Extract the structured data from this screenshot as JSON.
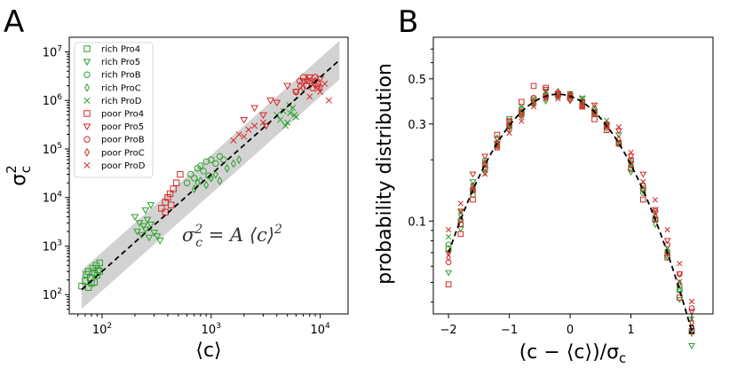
{
  "chart_data": [
    {
      "panel": "A",
      "type": "scatter",
      "xscale": "log",
      "yscale": "log",
      "xlim": [
        50,
        18000
      ],
      "ylim": [
        40,
        20000000
      ],
      "xticks": [
        100,
        1000,
        10000
      ],
      "xtick_labels": [
        {
          "base": "10",
          "exp": "2"
        },
        {
          "base": "10",
          "exp": "3"
        },
        {
          "base": "10",
          "exp": "4"
        }
      ],
      "yticks": [
        100,
        1000,
        10000,
        100000,
        1000000,
        10000000
      ],
      "ytick_labels": [
        {
          "base": "10",
          "exp": "2"
        },
        {
          "base": "10",
          "exp": "3"
        },
        {
          "base": "10",
          "exp": "4"
        },
        {
          "base": "10",
          "exp": "5"
        },
        {
          "base": "10",
          "exp": "6"
        },
        {
          "base": "10",
          "exp": "7"
        }
      ],
      "xlabel": "⟨c⟩",
      "ylabel": {
        "main": "σ",
        "sup": "2",
        "sub": "c"
      },
      "equation": {
        "lhs": "σ",
        "sup": "2",
        "sub": "c",
        "rhs": " = A ⟨c⟩",
        "rhs_sup": "2"
      },
      "fit": {
        "form": "y = A x^2",
        "A": 0.03,
        "x_range": [
          65,
          15000
        ],
        "band_factor": 2.5
      },
      "legend_position": "upper-left",
      "series": [
        {
          "name": "rich Pro4",
          "marker": "square",
          "color": "#2ca02c",
          "points": [
            [
              65,
              150
            ],
            [
              70,
              190
            ],
            [
              72,
              260
            ],
            [
              75,
              300
            ],
            [
              78,
              220
            ],
            [
              80,
              170
            ],
            [
              82,
              350
            ],
            [
              85,
              280
            ],
            [
              88,
              400
            ],
            [
              90,
              250
            ],
            [
              92,
              320
            ],
            [
              95,
              450
            ],
            [
              85,
              180
            ],
            [
              75,
              140
            ],
            [
              95,
              300
            ]
          ]
        },
        {
          "name": "rich Pro5",
          "marker": "tri_down",
          "color": "#2ca02c",
          "points": [
            [
              200,
              4000
            ],
            [
              210,
              2000
            ],
            [
              220,
              3000
            ],
            [
              230,
              1700
            ],
            [
              240,
              2600
            ],
            [
              250,
              2200
            ],
            [
              260,
              3500
            ],
            [
              270,
              1500
            ],
            [
              280,
              2800
            ],
            [
              300,
              1900
            ],
            [
              320,
              1600
            ],
            [
              340,
              1300
            ],
            [
              250,
              5500
            ],
            [
              280,
              7000
            ]
          ]
        },
        {
          "name": "rich ProB",
          "marker": "circle",
          "color": "#2ca02c",
          "points": [
            [
              600,
              20000
            ],
            [
              650,
              30000
            ],
            [
              700,
              25000
            ],
            [
              750,
              40000
            ],
            [
              800,
              45000
            ],
            [
              900,
              55000
            ],
            [
              1000,
              60000
            ],
            [
              1100,
              50000
            ],
            [
              1200,
              70000
            ],
            [
              850,
              35000
            ],
            [
              950,
              28000
            ],
            [
              1300,
              60000
            ]
          ]
        },
        {
          "name": "rich ProC",
          "marker": "diamond",
          "color": "#2ca02c",
          "points": [
            [
              700,
              15000
            ],
            [
              750,
              20000
            ],
            [
              800,
              22000
            ],
            [
              900,
              18000
            ],
            [
              1000,
              25000
            ],
            [
              1100,
              30000
            ],
            [
              1200,
              22000
            ],
            [
              1400,
              40000
            ],
            [
              1600,
              50000
            ],
            [
              1800,
              60000
            ]
          ]
        },
        {
          "name": "rich ProD",
          "marker": "x",
          "color": "#2ca02c",
          "points": [
            [
              4000,
              500000
            ],
            [
              4300,
              400000
            ],
            [
              4600,
              600000
            ],
            [
              5000,
              350000
            ],
            [
              5300,
              550000
            ],
            [
              5600,
              700000
            ],
            [
              6000,
              450000
            ],
            [
              4800,
              300000
            ],
            [
              5200,
              800000
            ],
            [
              5800,
              500000
            ]
          ]
        },
        {
          "name": "poor Pro4",
          "marker": "square",
          "color": "#d62728",
          "points": [
            [
              350,
              6000
            ],
            [
              380,
              8000
            ],
            [
              400,
              10000
            ],
            [
              420,
              12000
            ],
            [
              450,
              15000
            ],
            [
              480,
              20000
            ],
            [
              520,
              30000
            ],
            [
              380,
              5000
            ],
            [
              430,
              7000
            ]
          ]
        },
        {
          "name": "poor Pro5",
          "marker": "tri_down",
          "color": "#d62728",
          "points": [
            [
              2000,
              400000
            ],
            [
              2500,
              700000
            ],
            [
              3000,
              500000
            ],
            [
              3500,
              1000000
            ],
            [
              4000,
              900000
            ],
            [
              5000,
              2000000
            ],
            [
              6000,
              1500000
            ],
            [
              7000,
              2500000
            ],
            [
              8000,
              3000000
            ],
            [
              9000,
              2000000
            ],
            [
              10000,
              2800000
            ],
            [
              3200,
              300000
            ]
          ]
        },
        {
          "name": "poor ProB",
          "marker": "circle",
          "color": "#d62728",
          "points": [
            [
              6000,
              1500000
            ],
            [
              6500,
              2500000
            ],
            [
              7000,
              3000000
            ],
            [
              7500,
              2000000
            ],
            [
              8000,
              2500000
            ],
            [
              8500,
              1800000
            ],
            [
              9000,
              3000000
            ],
            [
              9500,
              2200000
            ]
          ]
        },
        {
          "name": "poor ProC",
          "marker": "diamond",
          "color": "#d62728",
          "points": [
            [
              6500,
              2000000
            ],
            [
              7000,
              1800000
            ],
            [
              7500,
              2600000
            ],
            [
              8200,
              2200000
            ],
            [
              9000,
              2500000
            ],
            [
              10000,
              1900000
            ]
          ]
        },
        {
          "name": "poor ProD",
          "marker": "x",
          "color": "#d62728",
          "points": [
            [
              1600,
              150000
            ],
            [
              1800,
              200000
            ],
            [
              2000,
              180000
            ],
            [
              2200,
              250000
            ],
            [
              2500,
              300000
            ],
            [
              3000,
              350000
            ],
            [
              8000,
              1200000
            ],
            [
              10000,
              1500000
            ],
            [
              12000,
              1000000
            ],
            [
              11000,
              2200000
            ],
            [
              9500,
              1700000
            ]
          ]
        }
      ]
    },
    {
      "panel": "B",
      "type": "scatter",
      "xscale": "linear",
      "yscale": "log",
      "xlim": [
        -2.25,
        2.35
      ],
      "ylim": [
        0.035,
        0.8
      ],
      "xticks": [
        -2,
        -1,
        0,
        1,
        2
      ],
      "xtick_labels": [
        "−2",
        "−1",
        "0",
        "1",
        "2"
      ],
      "yticks": [
        0.1,
        0.3,
        0.5
      ],
      "ytick_labels": [
        "0.1",
        "0.3",
        "0.5"
      ],
      "xlabel": "(c − ⟨c⟩)/σ",
      "xlabel_sub": "c",
      "ylabel": "probability distribution",
      "fit": {
        "form": "gaussian",
        "amplitude": 0.42,
        "mean": -0.2,
        "sigma": 0.95,
        "x_range": [
          -2.0,
          2.0
        ]
      },
      "x_points": [
        -2.0,
        -1.8,
        -1.6,
        -1.4,
        -1.2,
        -1.0,
        -0.8,
        -0.6,
        -0.4,
        -0.2,
        0.0,
        0.2,
        0.4,
        0.6,
        0.8,
        1.0,
        1.2,
        1.4,
        1.6,
        1.8,
        2.0
      ],
      "series": [
        {
          "name": "rich Pro4",
          "marker": "square",
          "color": "#2ca02c",
          "offsets": [
            1.05,
            0.95,
            1.0,
            1.02,
            0.98,
            1.0,
            0.97,
            1.03,
            1.0,
            0.99,
            1.02,
            1.0,
            0.98,
            1.01,
            1.0,
            0.97,
            1.02,
            1.0,
            0.98,
            1.0,
            1.0
          ]
        },
        {
          "name": "rich Pro5",
          "marker": "tri_down",
          "color": "#2ca02c",
          "offsets": [
            0.8,
            0.9,
            1.1,
            0.95,
            1.05,
            1.08,
            1.0,
            1.02,
            1.06,
            1.0,
            0.96,
            1.04,
            1.0,
            1.0,
            1.1,
            0.92,
            1.0,
            1.08,
            0.95,
            0.9,
            0.85
          ]
        },
        {
          "name": "rich ProB",
          "marker": "circle",
          "color": "#2ca02c",
          "offsets": [
            1.1,
            1.0,
            0.95,
            1.05,
            1.0,
            0.96,
            1.04,
            0.98,
            1.02,
            1.0,
            1.01,
            0.97,
            1.03,
            1.0,
            0.99,
            1.05,
            0.97,
            1.0,
            1.02,
            1.05,
            1.0
          ]
        },
        {
          "name": "rich ProC",
          "marker": "diamond",
          "color": "#2ca02c",
          "offsets": [
            1.0,
            1.05,
            1.0,
            0.92,
            1.06,
            1.0,
            0.98,
            1.0,
            0.95,
            1.03,
            1.0,
            1.0,
            1.05,
            0.97,
            1.0,
            1.03,
            1.0,
            0.95,
            1.0,
            1.0,
            0.98
          ]
        },
        {
          "name": "rich ProD",
          "marker": "x",
          "color": "#2ca02c",
          "offsets": [
            1.2,
            1.1,
            1.05,
            1.0,
            0.95,
            1.0,
            1.06,
            0.98,
            1.0,
            0.97,
            1.03,
            1.05,
            0.98,
            1.06,
            1.0,
            1.0,
            1.1,
            1.0,
            1.05,
            1.1,
            1.15
          ]
        },
        {
          "name": "poor Pro4",
          "marker": "square",
          "color": "#d62728",
          "offsets": [
            0.7,
            0.85,
            0.9,
            0.95,
            1.1,
            1.05,
            1.12,
            1.2,
            1.1,
            1.0,
            0.98,
            0.95,
            0.92,
            0.95,
            1.0,
            1.05,
            0.9,
            1.0,
            0.95,
            0.92,
            1.0
          ]
        },
        {
          "name": "poor Pro5",
          "marker": "tri_down",
          "color": "#d62728",
          "offsets": [
            1.0,
            1.1,
            1.2,
            1.1,
            1.0,
            1.05,
            0.95,
            1.0,
            1.08,
            1.0,
            0.95,
            1.0,
            1.08,
            1.0,
            1.15,
            1.1,
            1.2,
            1.12,
            1.15,
            1.2,
            1.25
          ]
        },
        {
          "name": "poor ProB",
          "marker": "circle",
          "color": "#d62728",
          "offsets": [
            0.9,
            0.95,
            1.0,
            1.0,
            0.95,
            1.0,
            1.0,
            1.05,
            1.0,
            1.02,
            1.0,
            0.96,
            1.0,
            1.02,
            1.0,
            0.95,
            1.05,
            1.1,
            1.1,
            1.2,
            1.3
          ]
        },
        {
          "name": "poor ProC",
          "marker": "diamond",
          "color": "#d62728",
          "offsets": [
            0.95,
            1.0,
            1.05,
            1.02,
            1.0,
            0.98,
            1.0,
            1.0,
            0.98,
            1.0,
            1.02,
            1.0,
            0.98,
            1.0,
            1.05,
            1.0,
            1.0,
            1.05,
            1.0,
            1.08,
            1.1
          ]
        },
        {
          "name": "poor ProD",
          "marker": "x",
          "color": "#d62728",
          "offsets": [
            1.3,
            1.2,
            1.0,
            0.9,
            0.95,
            0.92,
            0.9,
            0.95,
            0.98,
            0.95,
            1.0,
            0.95,
            1.0,
            0.98,
            1.2,
            1.15,
            1.1,
            1.25,
            1.3,
            1.35,
            1.4
          ]
        }
      ]
    }
  ],
  "panels": {
    "A": {
      "label": "A"
    },
    "B": {
      "label": "B"
    }
  }
}
